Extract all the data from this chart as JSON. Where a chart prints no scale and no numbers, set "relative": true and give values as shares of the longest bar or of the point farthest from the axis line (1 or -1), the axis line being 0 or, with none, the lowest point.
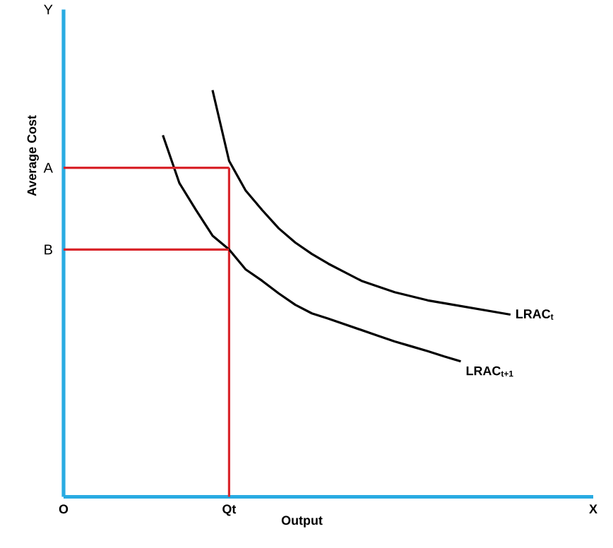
{
  "chart_data": {
    "type": "line",
    "relative": true,
    "xlabel": "Output",
    "ylabel": "Average Cost",
    "categories": [
      "O",
      null,
      null,
      null,
      null,
      null,
      null,
      null,
      null,
      null,
      "Qt",
      null,
      null,
      null,
      null,
      null,
      null,
      null,
      null,
      null,
      null,
      null,
      null,
      null,
      null,
      null,
      null,
      null,
      null,
      null,
      null,
      null,
      "X"
    ],
    "series": [
      {
        "name": "LRAC$_{t}$",
        "color": "#000000",
        "values": [
          null,
          null,
          null,
          null,
          null,
          null,
          null,
          null,
          null,
          1.0,
          0.826,
          0.753,
          0.705,
          0.66,
          0.625,
          0.597,
          0.573,
          0.552,
          0.531,
          0.517,
          0.503,
          0.493,
          0.483,
          0.476,
          0.469,
          0.462,
          0.455,
          0.448,
          null,
          null,
          null,
          null,
          null
        ]
      },
      {
        "name": "LRAC$_{t+1}$",
        "color": "#000000",
        "values": [
          null,
          null,
          null,
          null,
          null,
          null,
          0.889,
          0.771,
          0.705,
          0.642,
          0.608,
          0.559,
          0.531,
          0.5,
          0.472,
          0.451,
          0.438,
          0.424,
          0.41,
          0.396,
          0.382,
          0.37,
          0.358,
          0.345,
          0.333,
          null,
          null,
          null,
          null,
          null,
          null,
          null,
          null
        ]
      },
      {
        "color": "#d9252b",
        "values": [
          0.809,
          0.809,
          0.809,
          0.809,
          0.809,
          0.809,
          0.809,
          0.809,
          0.809,
          0.809,
          0.809,
          null,
          null,
          null,
          null,
          null,
          null,
          null,
          null,
          null,
          null,
          null,
          null,
          null,
          null,
          null,
          null,
          null,
          null,
          null,
          null,
          null,
          null
        ]
      },
      {
        "color": "#d9252b",
        "values": [
          0.608,
          0.608,
          0.608,
          0.608,
          0.608,
          0.608,
          0.608,
          0.608,
          0.608,
          0.608,
          0.608,
          null,
          null,
          null,
          null,
          null,
          null,
          null,
          null,
          null,
          null,
          null,
          null,
          null,
          null,
          null,
          null,
          null,
          null,
          null,
          null,
          null,
          null
        ]
      }
    ],
    "ref_lines": [
      {
        "axis": "x",
        "value": "Qt",
        "color": "#d9252b"
      }
    ],
    "annotations": [
      "A",
      "B",
      "Y"
    ]
  }
}
